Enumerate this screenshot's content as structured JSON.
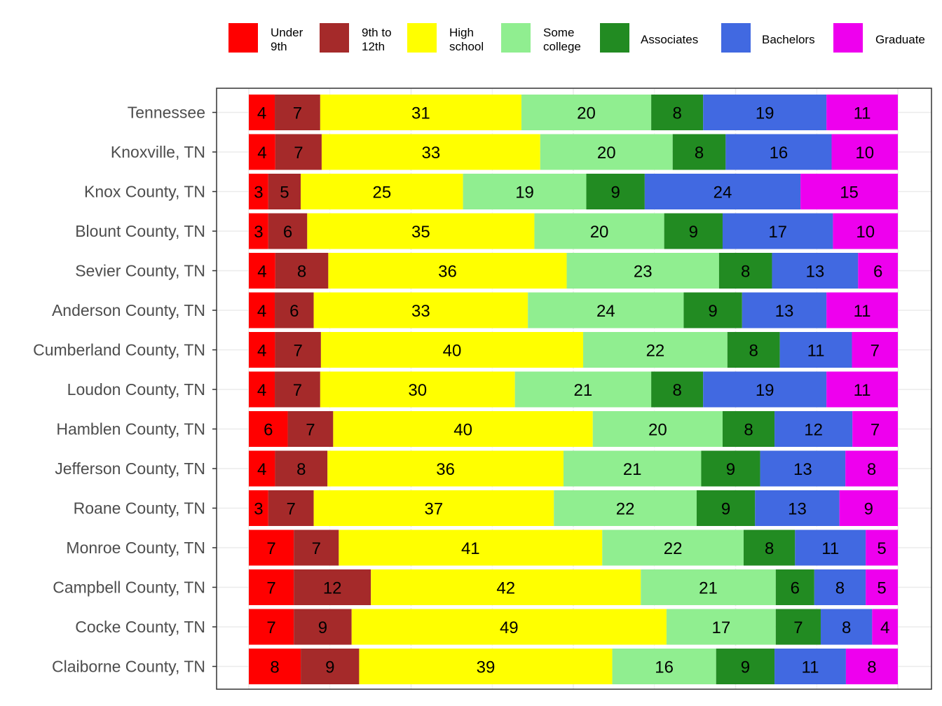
{
  "chart_data": {
    "type": "bar",
    "orientation": "horizontal",
    "stacked": true,
    "legend_position": "top",
    "grid": true,
    "xlim": [
      0,
      100
    ],
    "categories": [
      "Tennessee",
      "Knoxville, TN",
      "Knox County, TN",
      "Blount County, TN",
      "Sevier County, TN",
      "Anderson County, TN",
      "Cumberland County, TN",
      "Loudon County, TN",
      "Hamblen County, TN",
      "Jefferson County, TN",
      "Roane County, TN",
      "Monroe County, TN",
      "Campbell County, TN",
      "Cocke County, TN",
      "Claiborne County, TN"
    ],
    "series": [
      {
        "name": "Under 9th",
        "legend_lines": [
          "Under",
          "9th"
        ],
        "color": "#ff0000",
        "values": [
          4,
          4,
          3,
          3,
          4,
          4,
          4,
          4,
          6,
          4,
          3,
          7,
          7,
          7,
          8
        ]
      },
      {
        "name": "9th to 12th",
        "legend_lines": [
          "9th to",
          "12th"
        ],
        "color": "#a52a2a",
        "values": [
          7,
          7,
          5,
          6,
          8,
          6,
          7,
          7,
          7,
          8,
          7,
          7,
          12,
          9,
          9
        ]
      },
      {
        "name": "High school",
        "legend_lines": [
          "High",
          "school"
        ],
        "color": "#ffff00",
        "values": [
          31,
          33,
          25,
          35,
          36,
          33,
          40,
          30,
          40,
          36,
          37,
          41,
          42,
          49,
          39
        ]
      },
      {
        "name": "Some college",
        "legend_lines": [
          "Some",
          "college"
        ],
        "color": "#90ee90",
        "values": [
          20,
          20,
          19,
          20,
          23,
          24,
          22,
          21,
          20,
          21,
          22,
          22,
          21,
          17,
          16
        ]
      },
      {
        "name": "Associates",
        "legend_lines": [
          "Associates"
        ],
        "color": "#228b22",
        "values": [
          8,
          8,
          9,
          9,
          8,
          9,
          8,
          8,
          8,
          9,
          9,
          8,
          6,
          7,
          9
        ]
      },
      {
        "name": "Bachelors",
        "legend_lines": [
          "Bachelors"
        ],
        "color": "#4169e1",
        "values": [
          19,
          16,
          24,
          17,
          13,
          13,
          11,
          19,
          12,
          13,
          13,
          11,
          8,
          8,
          11
        ]
      },
      {
        "name": "Graduate",
        "legend_lines": [
          "Graduate"
        ],
        "color": "#ee00ee",
        "values": [
          11,
          10,
          15,
          10,
          6,
          11,
          7,
          11,
          7,
          8,
          9,
          5,
          5,
          4,
          8
        ]
      }
    ]
  }
}
